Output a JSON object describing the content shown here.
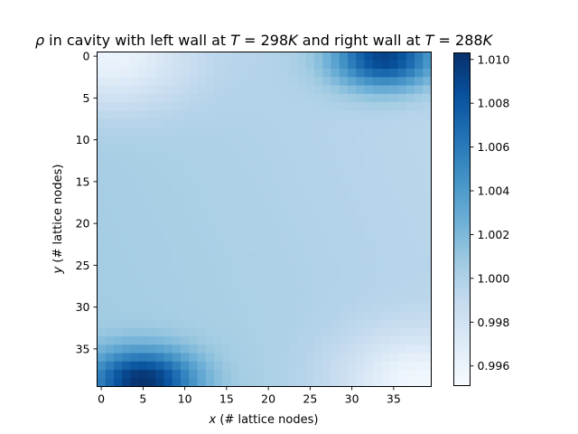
{
  "chart_data": {
    "type": "heatmap",
    "title": {
      "rho": "ρ",
      "part1": " in cavity with left wall at ",
      "eq1_T": "T",
      "eq1_num": " = 298",
      "eq1_K": "K",
      "part2": " and right wall at ",
      "eq2_T": "T",
      "eq2_num": " = 288",
      "eq2_K": "K"
    },
    "xlabel": {
      "var": "x",
      "text": " (# lattice nodes)"
    },
    "ylabel": {
      "var": "y",
      "text": " (# lattice nodes)"
    },
    "grid_size": {
      "nx": 40,
      "ny": 40
    },
    "x_range": [
      0,
      39
    ],
    "y_range": [
      0,
      39
    ],
    "y_axis_inverted": true,
    "x_ticks": [
      "0",
      "5",
      "10",
      "15",
      "20",
      "25",
      "30",
      "35"
    ],
    "y_ticks": [
      "0",
      "5",
      "10",
      "15",
      "20",
      "25",
      "30",
      "35"
    ],
    "colormap": "Blues",
    "colormap_stops": [
      "#f7fbff",
      "#deebf7",
      "#c6dbef",
      "#9ecae1",
      "#6baed6",
      "#4292c6",
      "#2171b5",
      "#08519c",
      "#08306b"
    ],
    "color_range": [
      0.9951,
      1.0103
    ],
    "colorbar_ticks": [
      "0.996",
      "0.998",
      "1.000",
      "1.002",
      "1.004",
      "1.006",
      "1.008",
      "1.010"
    ],
    "value_model": {
      "base": 1.0,
      "gradient_x": -0.0009,
      "gradient_y": 0.0004,
      "features": [
        {
          "type": "dense-blob",
          "x": 5,
          "y": 38.8,
          "sx": 4.5,
          "sy": 2.6,
          "amplitude": 0.0097
        },
        {
          "type": "dense-blob",
          "x": 34,
          "y": 0.2,
          "sx": 4.5,
          "sy": 2.6,
          "amplitude": 0.0097
        },
        {
          "type": "rarefied-blob",
          "x": 1,
          "y": 0,
          "sx": 6.5,
          "sy": 4.2,
          "amplitude": -0.0042
        },
        {
          "type": "rarefied-blob",
          "x": 38,
          "y": 39,
          "sx": 6.5,
          "sy": 4.2,
          "amplitude": -0.0042
        }
      ],
      "notes": "Density field is not printed numerically; values reconstructed from color: dark maxima near (5,39) and (34,0), light minima near (1,0) and (38,39), about 1.000 elsewhere."
    },
    "grid": false,
    "legend": "colorbar-right"
  }
}
